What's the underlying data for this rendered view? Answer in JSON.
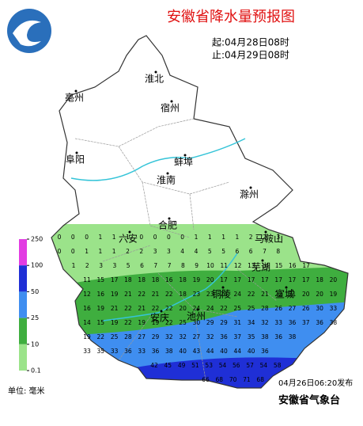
{
  "title": "安徽省降水量预报图",
  "period": {
    "start": "起:04月28日08时",
    "end": "止:04月29日08时"
  },
  "cities": [
    "淮北",
    "亳州",
    "宿州",
    "阜阳",
    "蚌埠",
    "淮南",
    "滁州",
    "合肥",
    "六安",
    "马鞍山",
    "芜湖",
    "铜陵",
    "宣城",
    "安庆",
    "池州"
  ],
  "legend": {
    "unit": "单位: 毫米",
    "levels": [
      250,
      100,
      50,
      25,
      10,
      0.1
    ],
    "colors": [
      "#e23ce2",
      "#1f2fd6",
      "#3f8ef0",
      "#3fae3f",
      "#9be38a"
    ]
  },
  "grid_values": [
    [
      0,
      0,
      0,
      1,
      1,
      1,
      0,
      0,
      0,
      0,
      1,
      1,
      1,
      1,
      2,
      2,
      3
    ],
    [
      0,
      0,
      1,
      1,
      1,
      2,
      2,
      3,
      3,
      4,
      4,
      5,
      5,
      6,
      6,
      7,
      8
    ],
    [
      1,
      2,
      3,
      3,
      5,
      6,
      7,
      7,
      8,
      9,
      10,
      11,
      12,
      13,
      14,
      15,
      16,
      17
    ],
    [
      11,
      15,
      17,
      18,
      18,
      18,
      16,
      18,
      19,
      20,
      17,
      17,
      17,
      17,
      17,
      17,
      17,
      18,
      20
    ],
    [
      12,
      16,
      19,
      21,
      22,
      21,
      22,
      18,
      23,
      23,
      23,
      24,
      22,
      21,
      22,
      21,
      20,
      20,
      19
    ],
    [
      16,
      19,
      21,
      22,
      21,
      22,
      22,
      20,
      24,
      24,
      22,
      25,
      25,
      28,
      26,
      27,
      26,
      30,
      33
    ],
    [
      14,
      15,
      19,
      22,
      19,
      19,
      22,
      25,
      30,
      29,
      29,
      31,
      34,
      32,
      33,
      36,
      37,
      36,
      38
    ],
    [
      19,
      22,
      25,
      28,
      27,
      29,
      32,
      32,
      27,
      32,
      36,
      37,
      35,
      38,
      36,
      38
    ],
    [
      33,
      35,
      33,
      36,
      33,
      36,
      38,
      40,
      43,
      44,
      40,
      44,
      40,
      36
    ],
    [
      42,
      45,
      49,
      51,
      53,
      54,
      56,
      57,
      54,
      58
    ],
    [
      66,
      68,
      70,
      71,
      68
    ]
  ],
  "issued": "04月26日06:20发布",
  "publisher": "安徽省气象台"
}
